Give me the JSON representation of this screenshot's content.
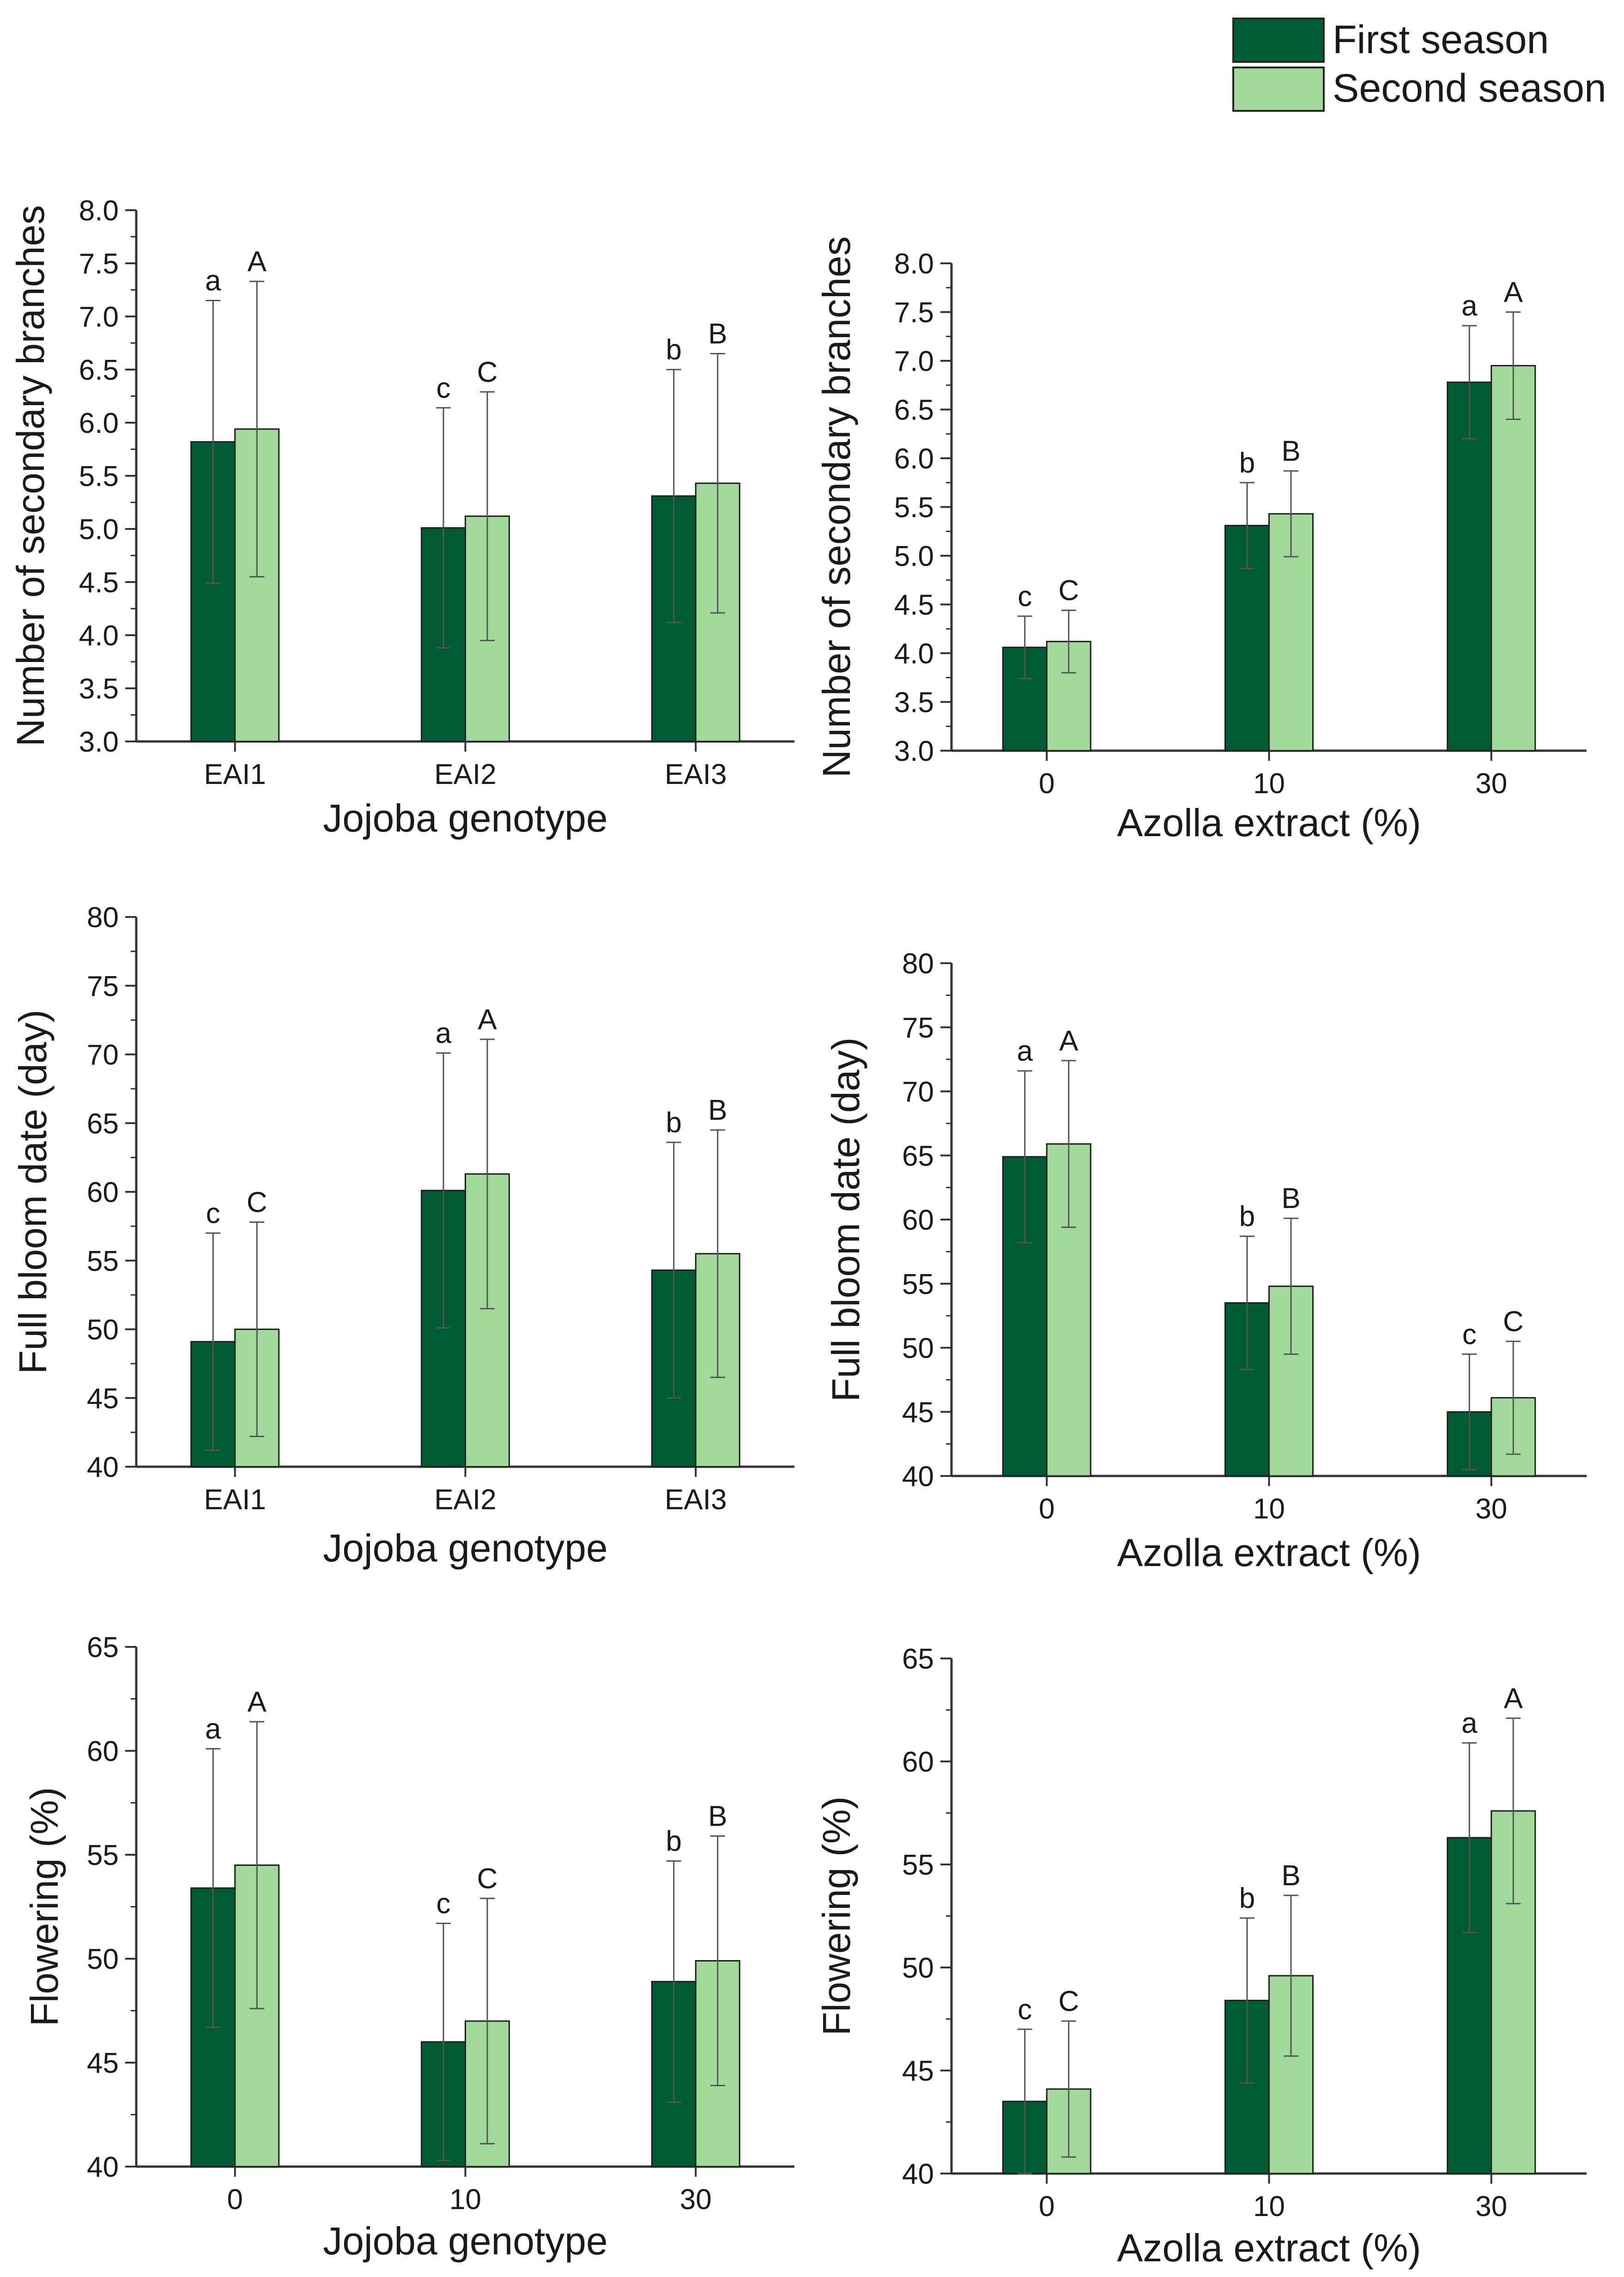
{
  "legend": {
    "entries": [
      {
        "label": "First season",
        "color": "#005a32"
      },
      {
        "label": "Second season",
        "color": "#a1d99b"
      }
    ],
    "position": "top-right"
  },
  "colors": {
    "first_season": "#005a32",
    "second_season": "#a1d99b",
    "error_bar": "#555555",
    "axis": "#333333"
  },
  "chart_data": [
    {
      "type": "bar",
      "panel": "top-left",
      "xlabel": "Jojoba genotype",
      "ylabel": "Number of secondary branches",
      "categories": [
        "EAI1",
        "EAI2",
        "EAI3"
      ],
      "ylim": [
        3.0,
        8.0
      ],
      "yticks": [
        "3.0",
        "3.5",
        "4.0",
        "4.5",
        "5.0",
        "5.5",
        "6.0",
        "6.5",
        "7.0",
        "7.5",
        "8.0"
      ],
      "series": [
        {
          "name": "First season",
          "values": [
            5.82,
            5.01,
            5.31
          ],
          "errors": [
            1.33,
            1.13,
            1.19
          ],
          "sig": [
            "a",
            "c",
            "b"
          ]
        },
        {
          "name": "Second season",
          "values": [
            5.94,
            5.12,
            5.43
          ],
          "errors": [
            1.39,
            1.17,
            1.22
          ],
          "sig": [
            "A",
            "C",
            "B"
          ]
        }
      ],
      "grid": false
    },
    {
      "type": "bar",
      "panel": "top-right",
      "xlabel": "Azolla extract (%)",
      "ylabel": "Number of secondary branches",
      "categories": [
        "0",
        "10",
        "30"
      ],
      "ylim": [
        3.0,
        8.0
      ],
      "yticks": [
        "3.0",
        "3.5",
        "4.0",
        "4.5",
        "5.0",
        "5.5",
        "6.0",
        "6.5",
        "7.0",
        "7.5",
        "8.0"
      ],
      "series": [
        {
          "name": "First season",
          "values": [
            4.06,
            5.31,
            6.78
          ],
          "errors": [
            0.32,
            0.44,
            0.58
          ],
          "sig": [
            "c",
            "b",
            "a"
          ]
        },
        {
          "name": "Second season",
          "values": [
            4.12,
            5.43,
            6.95
          ],
          "errors": [
            0.32,
            0.44,
            0.55
          ],
          "sig": [
            "C",
            "B",
            "A"
          ]
        }
      ],
      "grid": false
    },
    {
      "type": "bar",
      "panel": "middle-left",
      "xlabel": "Jojoba genotype",
      "ylabel": "Full bloom date (day)",
      "categories": [
        "EAI1",
        "EAI2",
        "EAI3"
      ],
      "ylim": [
        40,
        80
      ],
      "yticks": [
        "40",
        "45",
        "50",
        "55",
        "60",
        "65",
        "70",
        "75",
        "80"
      ],
      "series": [
        {
          "name": "First season",
          "values": [
            49.1,
            60.1,
            54.3
          ],
          "errors": [
            7.9,
            10.0,
            9.3
          ],
          "sig": [
            "c",
            "a",
            "b"
          ]
        },
        {
          "name": "Second season",
          "values": [
            50.0,
            61.3,
            55.5
          ],
          "errors": [
            7.8,
            9.8,
            9.0
          ],
          "sig": [
            "C",
            "A",
            "B"
          ]
        }
      ],
      "grid": false
    },
    {
      "type": "bar",
      "panel": "middle-right",
      "xlabel": "Azolla extract (%)",
      "ylabel": "Full bloom date (day)",
      "categories": [
        "0",
        "10",
        "30"
      ],
      "ylim": [
        40,
        80
      ],
      "yticks": [
        "40",
        "45",
        "50",
        "55",
        "60",
        "65",
        "70",
        "75",
        "80"
      ],
      "series": [
        {
          "name": "First season",
          "values": [
            64.9,
            53.5,
            45.0
          ],
          "errors": [
            6.7,
            5.2,
            4.5
          ],
          "sig": [
            "a",
            "b",
            "c"
          ]
        },
        {
          "name": "Second season",
          "values": [
            65.9,
            54.8,
            46.1
          ],
          "errors": [
            6.5,
            5.3,
            4.4
          ],
          "sig": [
            "A",
            "B",
            "C"
          ]
        }
      ],
      "grid": false
    },
    {
      "type": "bar",
      "panel": "bottom-left",
      "xlabel": "Jojoba genotype",
      "ylabel": "Flowering (%)",
      "categories": [
        "0",
        "10",
        "30"
      ],
      "ylim": [
        40,
        65
      ],
      "yticks": [
        "40",
        "45",
        "50",
        "55",
        "60",
        "65"
      ],
      "series": [
        {
          "name": "First season",
          "values": [
            53.4,
            46.0,
            48.9
          ],
          "errors": [
            6.7,
            5.7,
            5.8
          ],
          "sig": [
            "a",
            "c",
            "b"
          ]
        },
        {
          "name": "Second season",
          "values": [
            54.5,
            47.0,
            49.9
          ],
          "errors": [
            6.9,
            5.9,
            6.0
          ],
          "sig": [
            "A",
            "C",
            "B"
          ]
        }
      ],
      "grid": false
    },
    {
      "type": "bar",
      "panel": "bottom-right",
      "xlabel": "Azolla extract (%)",
      "ylabel": "Flowering (%)",
      "categories": [
        "0",
        "10",
        "30"
      ],
      "ylim": [
        40,
        65
      ],
      "yticks": [
        "40",
        "45",
        "50",
        "55",
        "60",
        "65"
      ],
      "series": [
        {
          "name": "First season",
          "values": [
            43.5,
            48.4,
            56.3
          ],
          "errors": [
            3.5,
            4.0,
            4.6
          ],
          "sig": [
            "c",
            "b",
            "a"
          ]
        },
        {
          "name": "Second season",
          "values": [
            44.1,
            49.6,
            57.6
          ],
          "errors": [
            3.3,
            3.9,
            4.5
          ],
          "sig": [
            "C",
            "B",
            "A"
          ]
        }
      ],
      "grid": false
    }
  ]
}
